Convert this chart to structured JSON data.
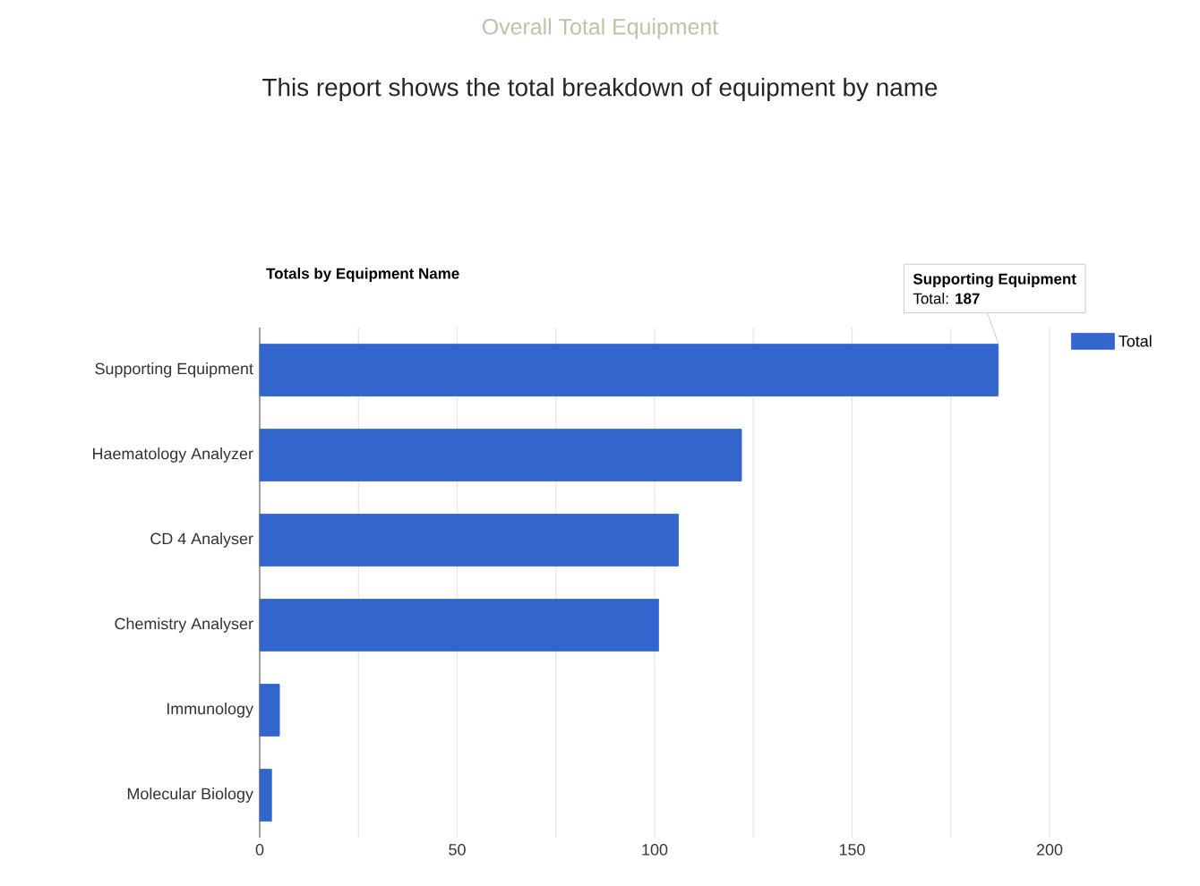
{
  "chart_data": {
    "type": "bar",
    "orientation": "horizontal",
    "title": "Overall Total Equipment",
    "subtitle": "This report shows the total breakdown of equipment by name",
    "annotations": [
      "Totals by Equipment Name",
      "Supporting Equipment",
      "Total: **187**"
    ],
    "categories": [
      "Supporting Equipment",
      "Haematology Analyzer",
      "CD 4 Analyser",
      "Chemistry Analyser",
      "Immunology",
      "Molecular Biology"
    ],
    "series": [
      {
        "name": "Total",
        "color": "#3366cc",
        "values": [
          187,
          122,
          106,
          101,
          5,
          3
        ]
      }
    ],
    "xlim": [
      0,
      200
    ],
    "xticks": [
      0,
      {
        "value": 25,
        "label": null
      },
      50,
      {
        "value": 75,
        "label": null
      },
      100,
      {
        "value": 125,
        "label": null
      },
      150,
      {
        "value": 175,
        "label": null
      },
      200
    ],
    "grid": "x",
    "legend": "top right"
  }
}
